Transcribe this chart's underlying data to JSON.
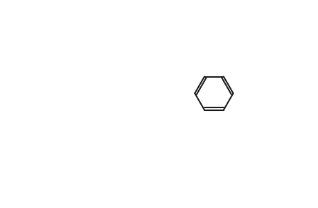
{
  "bg_color": "#ffffff",
  "line_color": "#1a1a1a",
  "line_width": 1.5,
  "figsize": [
    4.6,
    3.0
  ],
  "dpi": 100
}
